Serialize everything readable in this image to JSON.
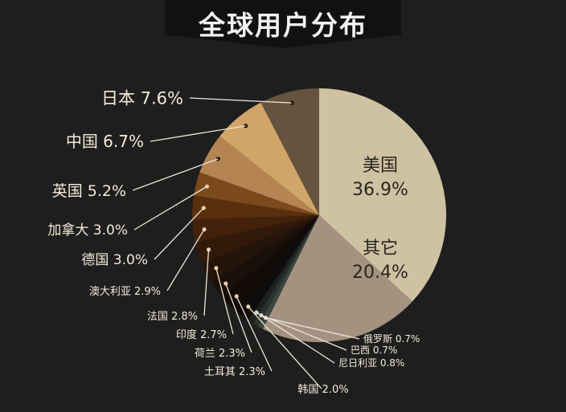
{
  "title": "全球用户分布",
  "chart_data": {
    "type": "pie",
    "slices": [
      {
        "label": "美国",
        "value": 36.9,
        "value_text": "36.9%",
        "color": "#cfc2a2"
      },
      {
        "label": "其它",
        "value": 20.4,
        "value_text": "20.4%",
        "color": "#a49280"
      },
      {
        "label": "俄罗斯",
        "value": 0.7,
        "value_text": "0.7%",
        "color": "#3d4640"
      },
      {
        "label": "巴西",
        "value": 0.7,
        "value_text": "0.7%",
        "color": "#2c332f"
      },
      {
        "label": "尼日利亚",
        "value": 0.8,
        "value_text": "0.8%",
        "color": "#1d2220"
      },
      {
        "label": "韩国",
        "value": 2.0,
        "value_text": "2.0%",
        "color": "#0e0d0b"
      },
      {
        "label": "土耳其",
        "value": 2.3,
        "value_text": "2.3%",
        "color": "#120b07"
      },
      {
        "label": "荷兰",
        "value": 2.3,
        "value_text": "2.3%",
        "color": "#1a0f09"
      },
      {
        "label": "印度",
        "value": 2.7,
        "value_text": "2.7%",
        "color": "#25140a"
      },
      {
        "label": "法国",
        "value": 2.8,
        "value_text": "2.8%",
        "color": "#33190a"
      },
      {
        "label": "澳大利亚",
        "value": 2.9,
        "value_text": "2.9%",
        "color": "#43210b"
      },
      {
        "label": "德国",
        "value": 3.0,
        "value_text": "3.0%",
        "color": "#5a2f0e"
      },
      {
        "label": "加拿大",
        "value": 3.0,
        "value_text": "3.0%",
        "color": "#7b4a1c"
      },
      {
        "label": "英国",
        "value": 5.2,
        "value_text": "5.2%",
        "color": "#b58453"
      },
      {
        "label": "中国",
        "value": 6.7,
        "value_text": "6.7%",
        "color": "#d1a468"
      },
      {
        "label": "日本",
        "value": 7.6,
        "value_text": "7.6%",
        "color": "#65523f"
      }
    ]
  }
}
